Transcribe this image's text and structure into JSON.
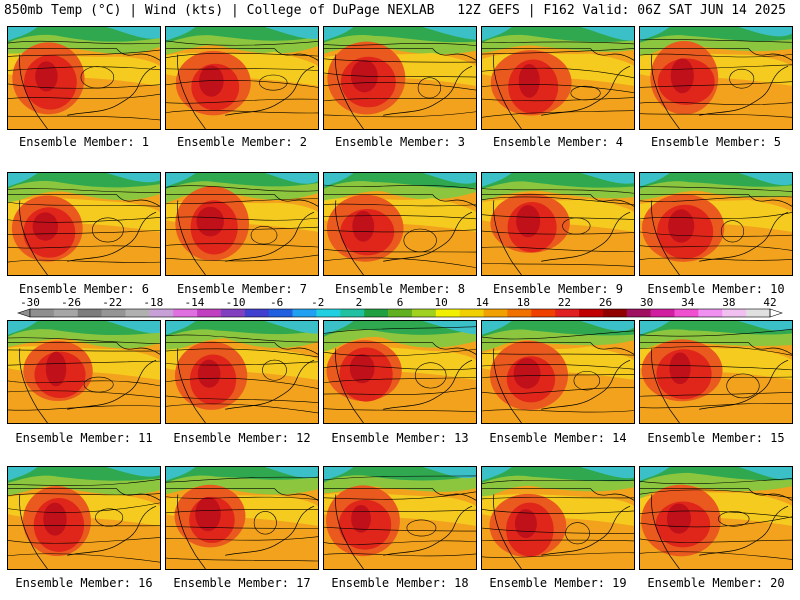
{
  "header": {
    "left": "850mb Temp (°C) | Wind (kts) | College of DuPage NEXLAB",
    "right": "12Z GEFS | F162 Valid: 06Z SAT JUN 14 2025"
  },
  "caption_prefix": "Ensemble Member:",
  "members": [
    {
      "label": "Ensemble Member: 1"
    },
    {
      "label": "Ensemble Member: 2"
    },
    {
      "label": "Ensemble Member: 3"
    },
    {
      "label": "Ensemble Member: 4"
    },
    {
      "label": "Ensemble Member: 5"
    },
    {
      "label": "Ensemble Member: 6"
    },
    {
      "label": "Ensemble Member: 7"
    },
    {
      "label": "Ensemble Member: 8"
    },
    {
      "label": "Ensemble Member: 9"
    },
    {
      "label": "Ensemble Member: 10"
    },
    {
      "label": "Ensemble Member: 11"
    },
    {
      "label": "Ensemble Member: 12"
    },
    {
      "label": "Ensemble Member: 13"
    },
    {
      "label": "Ensemble Member: 14"
    },
    {
      "label": "Ensemble Member: 15"
    },
    {
      "label": "Ensemble Member: 16"
    },
    {
      "label": "Ensemble Member: 17"
    },
    {
      "label": "Ensemble Member: 18"
    },
    {
      "label": "Ensemble Member: 19"
    },
    {
      "label": "Ensemble Member: 20"
    }
  ],
  "colorbar": {
    "ticks": [
      "-30",
      "-26",
      "-22",
      "-18",
      "-14",
      "-10",
      "-6",
      "-2",
      "2",
      "6",
      "10",
      "14",
      "18",
      "22",
      "26",
      "30",
      "34",
      "38",
      "42"
    ],
    "colors": [
      "#8f8f8f",
      "#a6a6a6",
      "#7d7d7d",
      "#959595",
      "#b0b0b0",
      "#c8a0d8",
      "#e070e0",
      "#c040c0",
      "#8040c0",
      "#4040d0",
      "#2060e0",
      "#20a0f0",
      "#20d0e0",
      "#20c0a0",
      "#20a040",
      "#60b020",
      "#a0d020",
      "#f0f000",
      "#f0d000",
      "#f0a000",
      "#f07000",
      "#f04000",
      "#e02020",
      "#c00000",
      "#900000",
      "#a01060",
      "#d020a0",
      "#f050d0",
      "#f090f0",
      "#f0c0f0",
      "#e0e0e0"
    ]
  }
}
